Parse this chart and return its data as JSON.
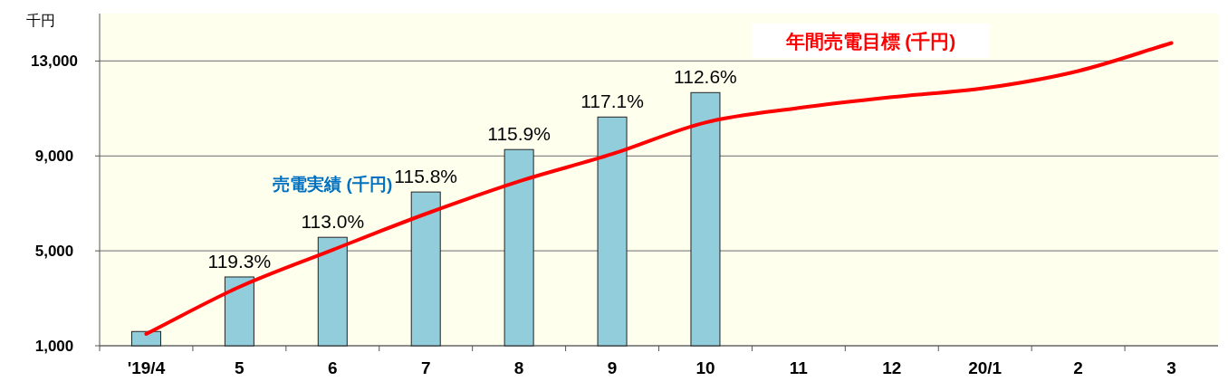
{
  "chart_data": {
    "type": "bar",
    "ylabel": "千円",
    "categories": [
      "'19/4",
      "5",
      "6",
      "7",
      "8",
      "9",
      "10",
      "11",
      "12",
      "20/1",
      "2",
      "3"
    ],
    "series": [
      {
        "name": "売電実績 (千円)",
        "color": "#92cddc",
        "values": [
          1600,
          3900,
          5570,
          7480,
          9270,
          10640,
          11670,
          null,
          null,
          null,
          null,
          null
        ]
      },
      {
        "type": "line",
        "name": "年間売電目標 (千円)",
        "color": "#ff0000",
        "values": [
          1500,
          3480,
          5040,
          6560,
          7930,
          9080,
          10410,
          11020,
          11480,
          11860,
          12580,
          13760
        ]
      }
    ],
    "ylim": [
      1000,
      15000
    ],
    "yticks": [
      {
        "value": 1000,
        "label": "1,000"
      },
      {
        "value": 5000,
        "label": "5,000"
      },
      {
        "value": 9000,
        "label": "9,000"
      },
      {
        "value": 13000,
        "label": "13,000"
      }
    ],
    "grid": "y",
    "annotations": [
      {
        "text": "119.3%",
        "x": "5",
        "y": 3900
      },
      {
        "text": "113.0%",
        "x": "6",
        "y": 5570
      },
      {
        "text": "115.8%",
        "x": "7",
        "y": 7480
      },
      {
        "text": "115.9%",
        "x": "8",
        "y": 9270
      },
      {
        "text": "117.1%",
        "x": "9",
        "y": 10640
      },
      {
        "text": "112.6%",
        "x": "10",
        "y": 11670
      }
    ]
  }
}
